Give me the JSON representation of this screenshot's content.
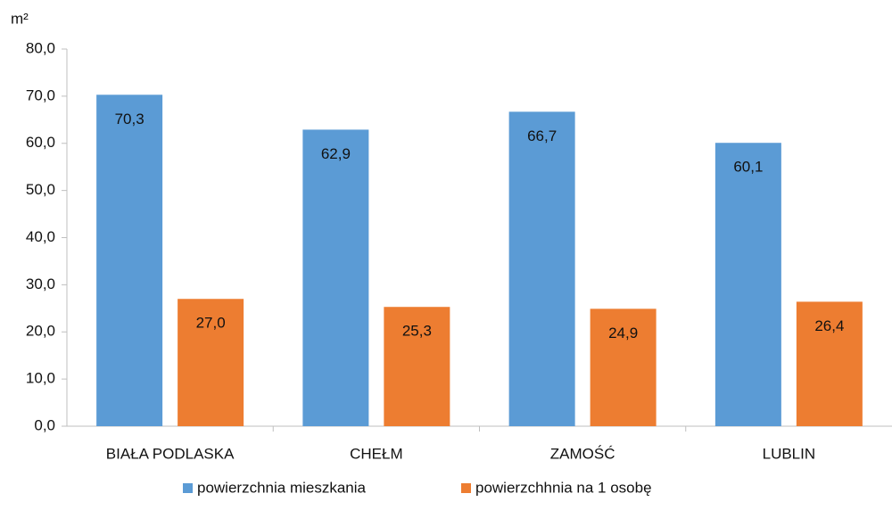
{
  "chart_data": {
    "type": "bar",
    "y_axis_label": "m²",
    "categories": [
      "BIAŁA PODLASKA",
      "CHEŁM",
      "ZAMOŚĆ",
      "LUBLIN"
    ],
    "series": [
      {
        "name": "powierzchnia mieszkania",
        "color": "#5b9bd5",
        "values": [
          70.3,
          62.9,
          66.7,
          60.1
        ],
        "value_labels": [
          "70,3",
          "62,9",
          "66,7",
          "60,1"
        ]
      },
      {
        "name": "powierzchhnia na 1 osobę",
        "color": "#ed7d31",
        "values": [
          27.0,
          25.3,
          24.9,
          26.4
        ],
        "value_labels": [
          "27,0",
          "25,3",
          "24,9",
          "26,4"
        ]
      }
    ],
    "ylim": [
      0,
      80
    ],
    "yticks": [
      {
        "value": 0,
        "label": "0,0"
      },
      {
        "value": 10,
        "label": "10,0"
      },
      {
        "value": 20,
        "label": "20,0"
      },
      {
        "value": 30,
        "label": "30,0"
      },
      {
        "value": 40,
        "label": "40,0"
      },
      {
        "value": 50,
        "label": "50,0"
      },
      {
        "value": 60,
        "label": "60,0"
      },
      {
        "value": 70,
        "label": "70,0"
      },
      {
        "value": 80,
        "label": "80,0"
      }
    ],
    "legend": "bottom"
  }
}
